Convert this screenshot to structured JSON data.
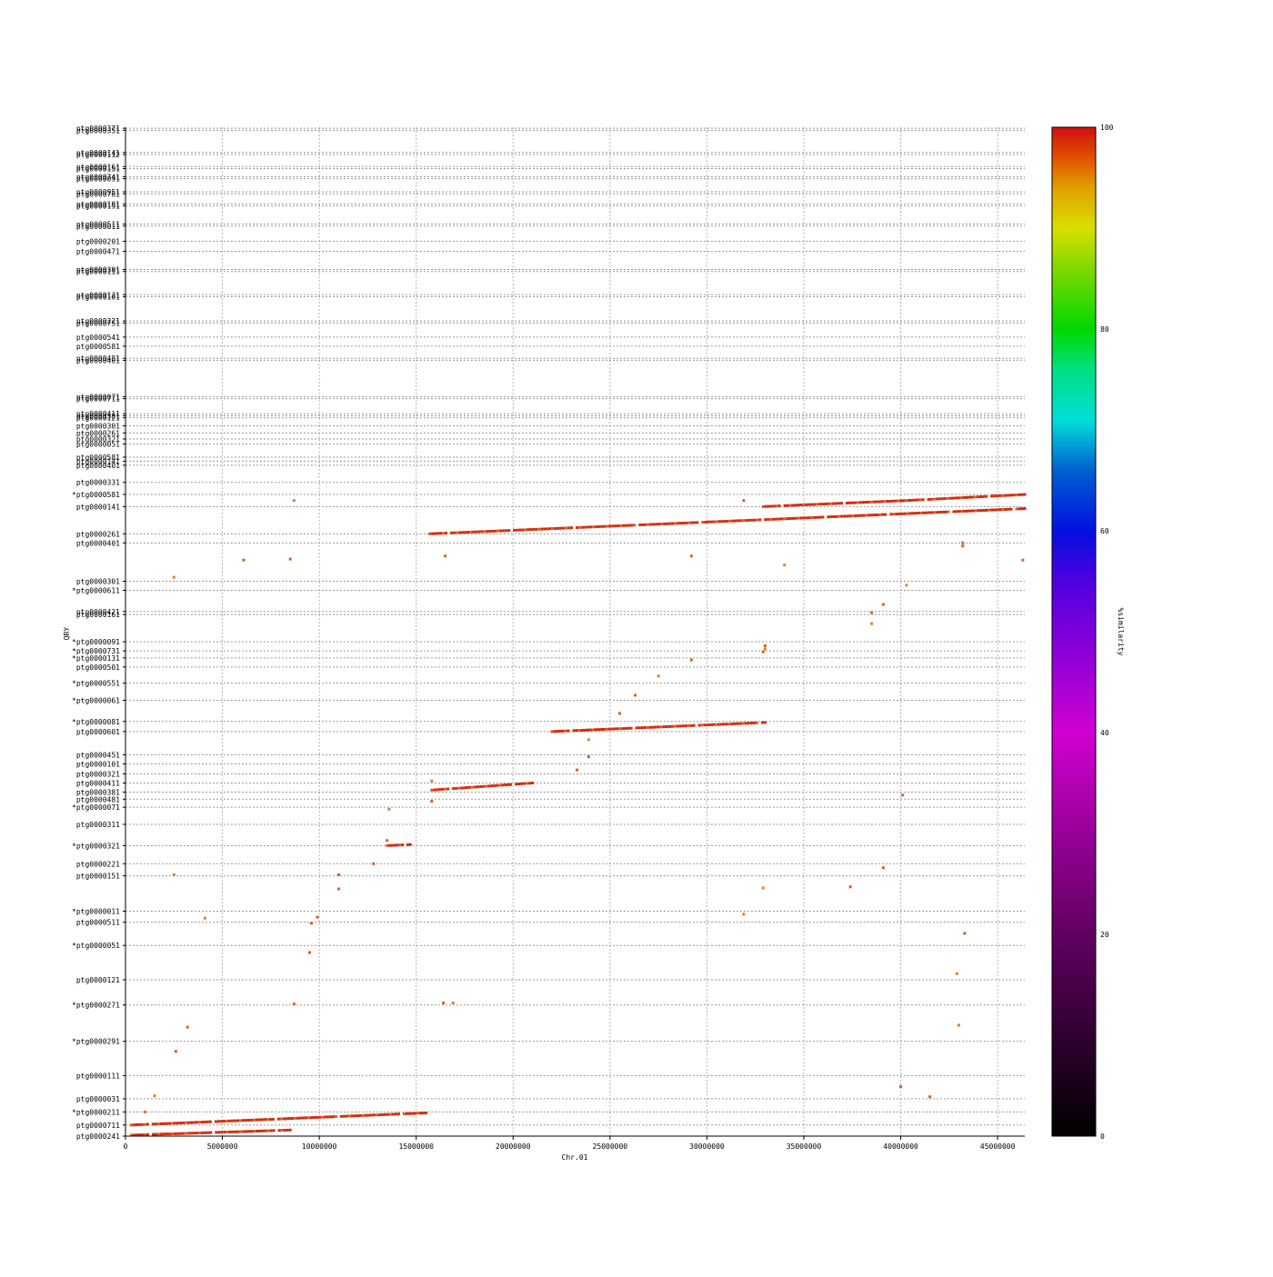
{
  "chart_data": {
    "type": "scatter",
    "title": "",
    "xlabel": "Chr.01",
    "ylabel": "QRY",
    "xlim": [
      0,
      46400000
    ],
    "x_ticks": [
      0,
      5000000,
      10000000,
      15000000,
      20000000,
      25000000,
      30000000,
      35000000,
      40000000,
      45000000
    ],
    "x_tick_labels": [
      "0",
      "5000000",
      "10000000",
      "15000000",
      "20000000",
      "25000000",
      "30000000",
      "35000000",
      "40000000",
      "45000000"
    ],
    "grid": true,
    "ylim_rows": [
      0,
      1000
    ],
    "y_rows": [
      {
        "label": "ptg0000241",
        "row": 0
      },
      {
        "label": "ptg0000711",
        "row": 11
      },
      {
        "label": "*ptg0000211",
        "row": 24
      },
      {
        "label": "ptg0000031",
        "row": 37
      },
      {
        "label": "ptg0000111",
        "row": 60
      },
      {
        "label": "*ptg0000291",
        "row": 94
      },
      {
        "label": "*ptg0000271",
        "row": 130
      },
      {
        "label": "ptg0000121",
        "row": 155
      },
      {
        "label": "*ptg0000051",
        "row": 189
      },
      {
        "label": "ptg0000511",
        "row": 212
      },
      {
        "label": "*ptg0000011",
        "row": 223
      },
      {
        "label": "ptg0000151",
        "row": 258
      },
      {
        "label": "ptg0000221",
        "row": 270
      },
      {
        "label": "*ptg0000321",
        "row": 288
      },
      {
        "label": "ptg0000311",
        "row": 309
      },
      {
        "label": "*ptg0000071",
        "row": 326
      },
      {
        "label": "ptg0000481",
        "row": 334
      },
      {
        "label": "ptg0000381",
        "row": 341
      },
      {
        "label": "ptg0000411",
        "row": 350
      },
      {
        "label": "ptg0000321",
        "row": 359
      },
      {
        "label": "ptg0000101",
        "row": 369
      },
      {
        "label": "ptg0000451",
        "row": 378
      },
      {
        "label": "ptg0000601",
        "row": 401
      },
      {
        "label": "*ptg0000081",
        "row": 411
      },
      {
        "label": "*ptg0000061",
        "row": 432
      },
      {
        "label": "*ptg0000551",
        "row": 449
      },
      {
        "label": "ptg0000501",
        "row": 465
      },
      {
        "label": "*ptg0000131",
        "row": 474
      },
      {
        "label": "*ptg0000731",
        "row": 481
      },
      {
        "label": "*ptg0000091",
        "row": 490
      },
      {
        "label": "ptg0000161",
        "row": 517
      },
      {
        "label": "ptg0000421",
        "row": 520
      },
      {
        "label": "*ptg0000611",
        "row": 541
      },
      {
        "label": "ptg0000301",
        "row": 550
      },
      {
        "label": "ptg0000401",
        "row": 588
      },
      {
        "label": "ptg0000261",
        "row": 597
      },
      {
        "label": "ptg0000141",
        "row": 624
      },
      {
        "label": "*ptg0000581",
        "row": 636
      },
      {
        "label": "ptg0000331",
        "row": 648
      },
      {
        "label": "ptg0000401",
        "row": 665
      },
      {
        "label": "ptg0000581",
        "row": 673
      },
      {
        "label": "ptg0000141",
        "row": 669
      },
      {
        "label": "ptg0000321",
        "row": 691
      },
      {
        "label": "ptg0000261",
        "row": 697
      },
      {
        "label": "ptg0000301",
        "row": 704
      },
      {
        "label": "ptg0000051",
        "row": 686
      },
      {
        "label": "ptg0000121",
        "row": 712
      },
      {
        "label": "ptg0000381",
        "row": 714
      },
      {
        "label": "ptg0000411",
        "row": 716
      },
      {
        "label": "ptg0000711",
        "row": 731
      },
      {
        "label": "ptg0000071",
        "row": 733
      },
      {
        "label": "ptg0000401",
        "row": 769
      },
      {
        "label": "ptg0000481",
        "row": 771
      },
      {
        "label": "ptg0000581",
        "row": 783
      },
      {
        "label": "ptg0000541",
        "row": 792
      },
      {
        "label": "ptg0000751",
        "row": 806
      },
      {
        "label": "ptg0000221",
        "row": 808
      },
      {
        "label": "ptg0000161",
        "row": 832
      },
      {
        "label": "ptg0000131",
        "row": 834
      },
      {
        "label": "ptg0000111",
        "row": 857
      },
      {
        "label": "ptg0000301",
        "row": 859
      },
      {
        "label": "ptg0000471",
        "row": 877
      },
      {
        "label": "ptg0000201",
        "row": 887
      },
      {
        "label": "ptg0000011",
        "row": 902
      },
      {
        "label": "ptg0000511",
        "row": 904
      },
      {
        "label": "ptg0000191",
        "row": 922
      },
      {
        "label": "ptg0000181",
        "row": 924
      },
      {
        "label": "ptg0000761",
        "row": 934
      },
      {
        "label": "ptg0000951",
        "row": 936
      },
      {
        "label": "ptg0000091",
        "row": 949
      },
      {
        "label": "ptg0000741",
        "row": 951
      },
      {
        "label": "ptg0000151",
        "row": 959
      },
      {
        "label": "ptg0000161",
        "row": 961
      },
      {
        "label": "ptg0000112",
        "row": 973
      },
      {
        "label": "ptg0000141",
        "row": 975
      },
      {
        "label": "ptg0000351",
        "row": 997
      },
      {
        "label": "ptg0000371",
        "row": 999
      }
    ],
    "series": [
      {
        "segments": [
          {
            "x0": 15700000,
            "y0": 597,
            "x1": 46400000,
            "y1": 622
          },
          {
            "x0": 22000000,
            "y0": 401,
            "x1": 33000000,
            "y1": 410
          },
          {
            "x0": 15800000,
            "y0": 343,
            "x1": 21000000,
            "y1": 350
          },
          {
            "x0": 300000,
            "y0": 1,
            "x1": 8500000,
            "y1": 6
          },
          {
            "x0": 300000,
            "y0": 11,
            "x1": 15500000,
            "y1": 23
          },
          {
            "x0": 13500000,
            "y0": 288,
            "x1": 14700000,
            "y1": 289
          },
          {
            "x0": 32900000,
            "y0": 624,
            "x1": 40300000,
            "y1": 630
          },
          {
            "x0": 40300000,
            "y0": 630,
            "x1": 46400000,
            "y1": 636
          }
        ],
        "points": [
          [
            8700000,
            630
          ],
          [
            6100000,
            571
          ],
          [
            8500000,
            572
          ],
          [
            2500000,
            554
          ],
          [
            16500000,
            575
          ],
          [
            29200000,
            575
          ],
          [
            34000000,
            566
          ],
          [
            43200000,
            585
          ],
          [
            43200000,
            588
          ],
          [
            40300000,
            546
          ],
          [
            39100000,
            527
          ],
          [
            38500000,
            519
          ],
          [
            38500000,
            508
          ],
          [
            46300000,
            571
          ],
          [
            33000000,
            486
          ],
          [
            33000000,
            483
          ],
          [
            32900000,
            480
          ],
          [
            29200000,
            472
          ],
          [
            27500000,
            456
          ],
          [
            26300000,
            437
          ],
          [
            25500000,
            419
          ],
          [
            23900000,
            393
          ],
          [
            23900000,
            376
          ],
          [
            23300000,
            363
          ],
          [
            15800000,
            352
          ],
          [
            15800000,
            332
          ],
          [
            40100000,
            338
          ],
          [
            13600000,
            324
          ],
          [
            13500000,
            293
          ],
          [
            12800000,
            270
          ],
          [
            2500000,
            259
          ],
          [
            11000000,
            259
          ],
          [
            11000000,
            245
          ],
          [
            32900000,
            246
          ],
          [
            37400000,
            247
          ],
          [
            39100000,
            266
          ],
          [
            4100000,
            216
          ],
          [
            9900000,
            217
          ],
          [
            9600000,
            211
          ],
          [
            31900000,
            220
          ],
          [
            43300000,
            201
          ],
          [
            9500000,
            182
          ],
          [
            42900000,
            161
          ],
          [
            8700000,
            131
          ],
          [
            16400000,
            132
          ],
          [
            16900000,
            132
          ],
          [
            3200000,
            108
          ],
          [
            2600000,
            84
          ],
          [
            43000000,
            110
          ],
          [
            40000000,
            49
          ],
          [
            41500000,
            39
          ],
          [
            1500000,
            40
          ],
          [
            1000000,
            24
          ],
          [
            31900000,
            630
          ]
        ]
      }
    ],
    "colorbar": {
      "label": "%similarity",
      "range": [
        0,
        100
      ],
      "tick_labels": [
        "0",
        "20",
        "40",
        "60",
        "80",
        "100"
      ],
      "stops": [
        {
          "value": 0,
          "color": "#000000"
        },
        {
          "value": 20,
          "color": "#600060"
        },
        {
          "value": 40,
          "color": "#d000d0"
        },
        {
          "value": 55,
          "color": "#5000e0"
        },
        {
          "value": 60,
          "color": "#0010e0"
        },
        {
          "value": 66,
          "color": "#0060d0"
        },
        {
          "value": 71,
          "color": "#00e0d8"
        },
        {
          "value": 76,
          "color": "#00e080"
        },
        {
          "value": 80,
          "color": "#00d800"
        },
        {
          "value": 86,
          "color": "#80d800"
        },
        {
          "value": 90,
          "color": "#d8e000"
        },
        {
          "value": 94,
          "color": "#e0a000"
        },
        {
          "value": 97,
          "color": "#e05000"
        },
        {
          "value": 100,
          "color": "#d01010"
        }
      ]
    },
    "colors": {
      "dot_main": "#d42a10",
      "dot_secondary": "#d86020",
      "dot_light": "#e08030"
    }
  }
}
